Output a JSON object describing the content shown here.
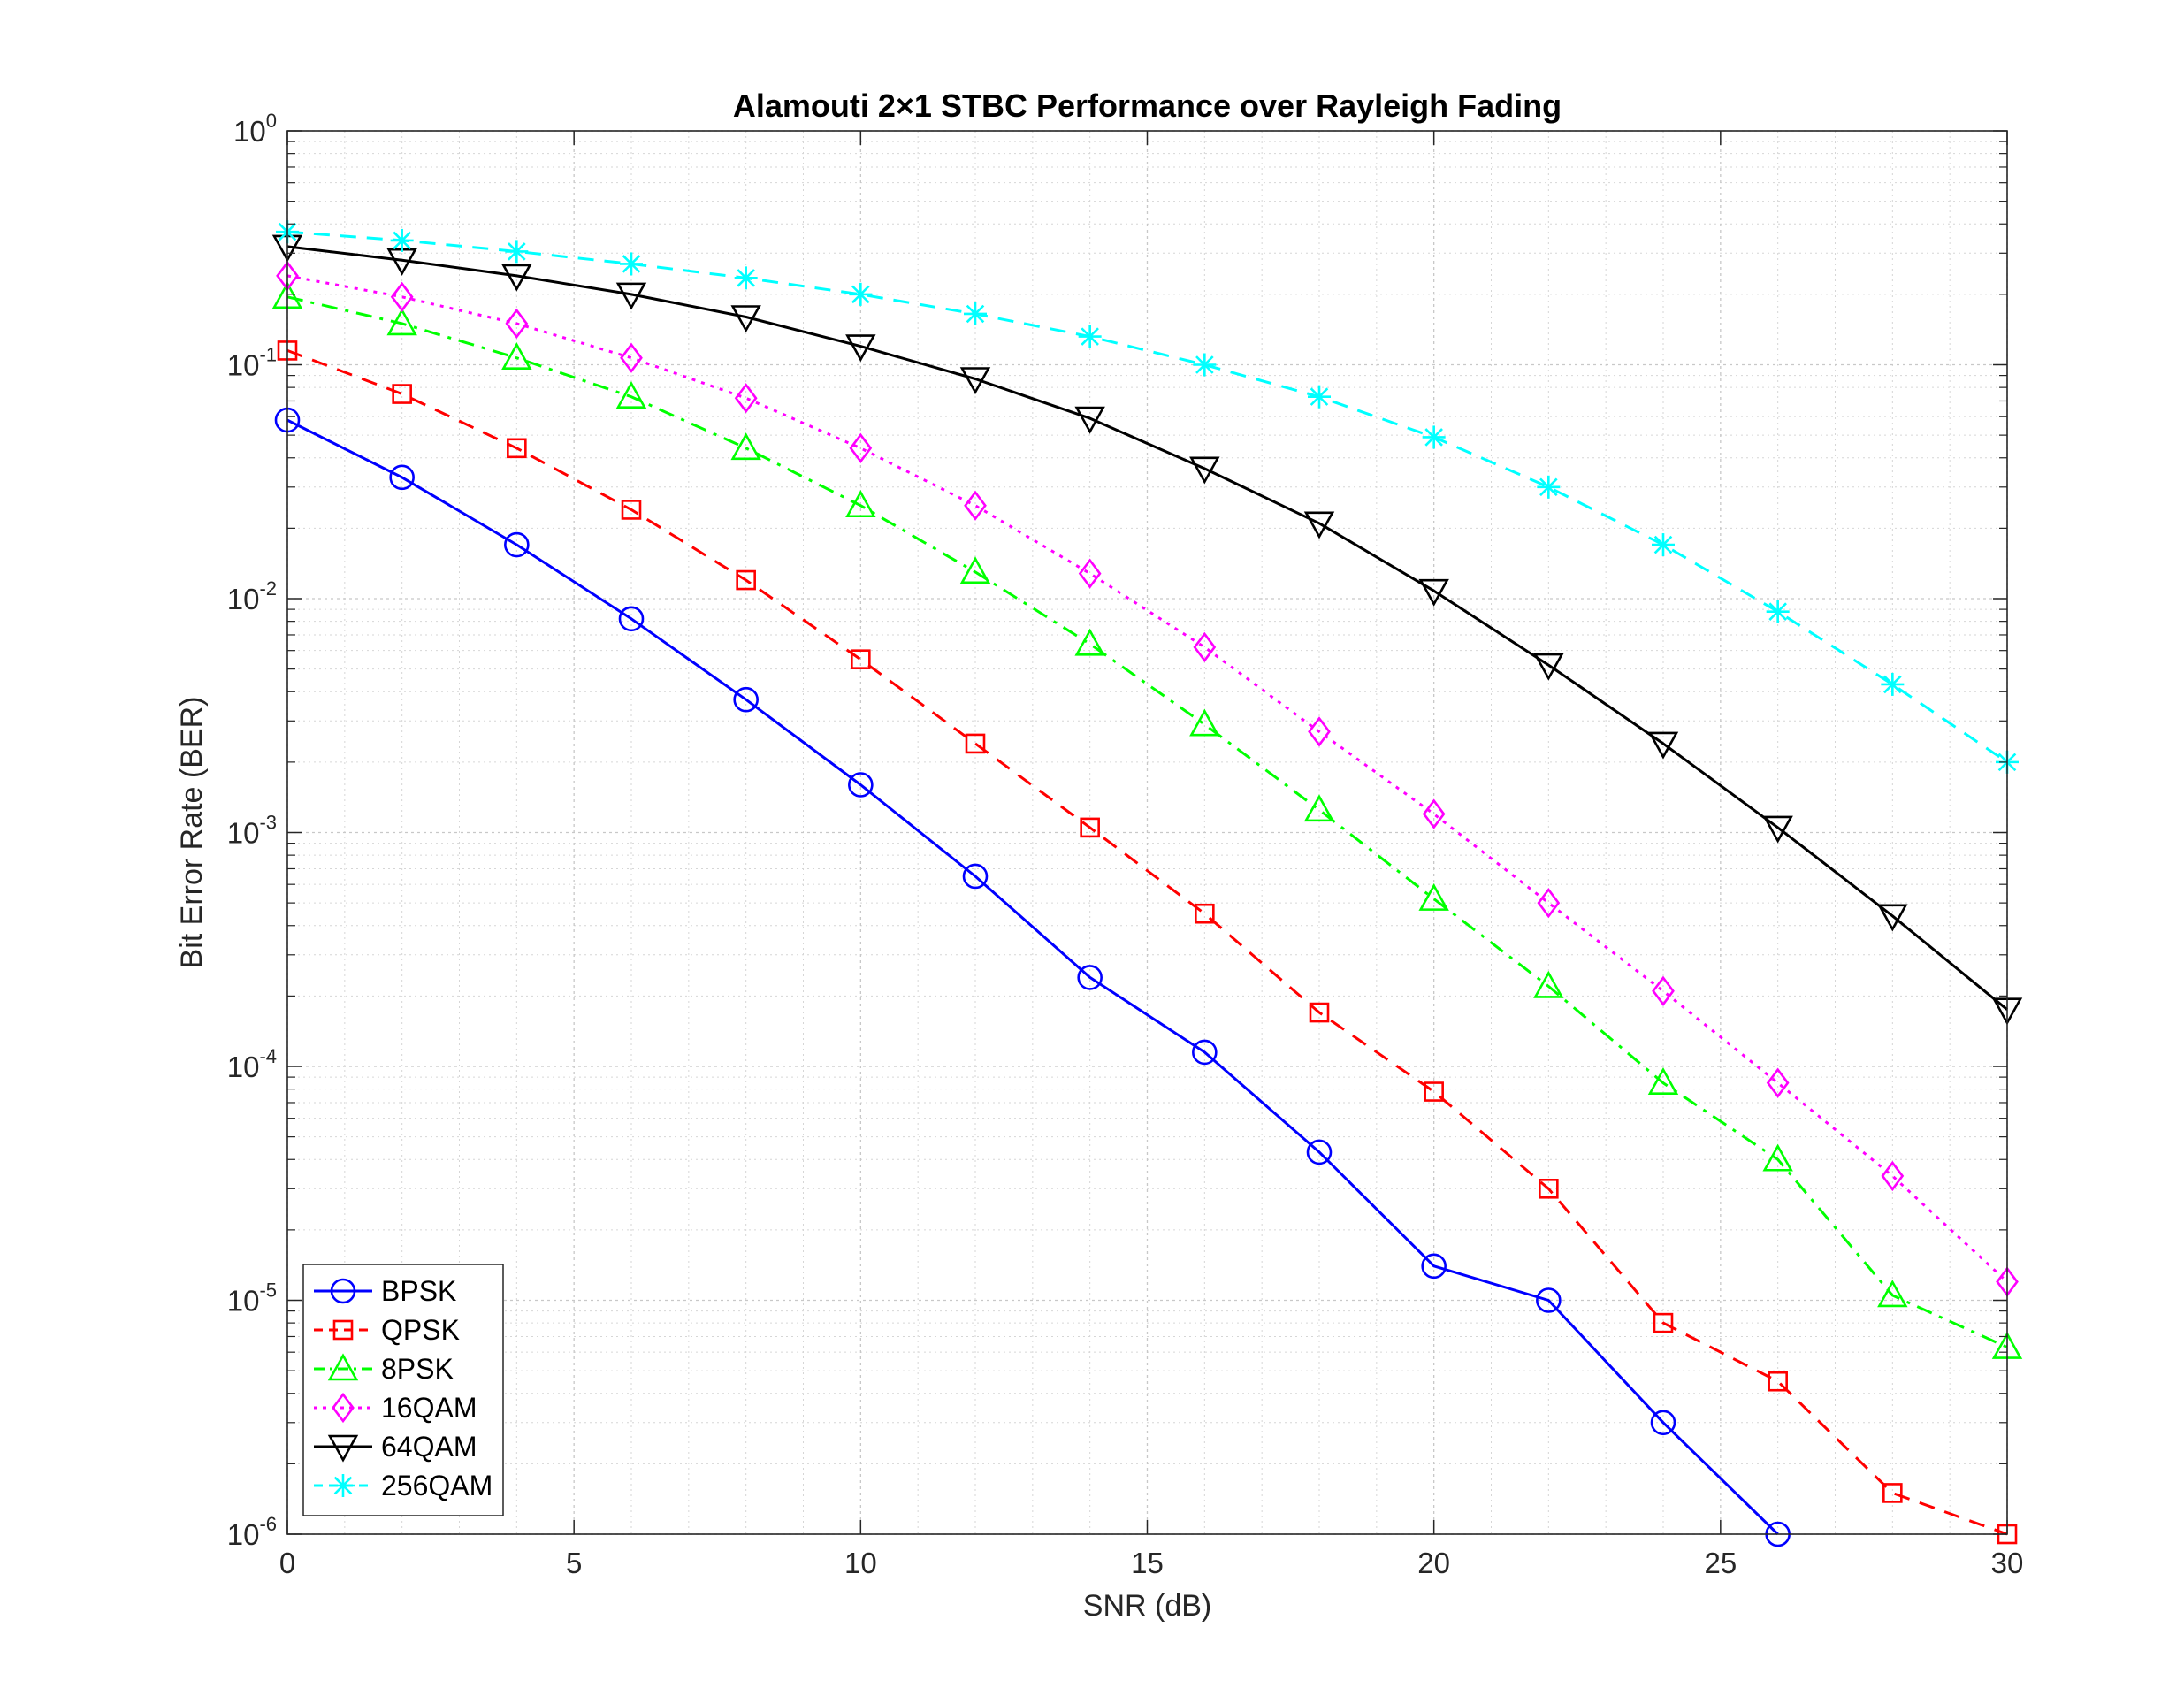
{
  "chart_data": {
    "type": "line",
    "title": "Alamouti 2×1 STBC Performance over Rayleigh Fading",
    "xlabel": "SNR (dB)",
    "ylabel": "Bit Error Rate (BER)",
    "xlim": [
      0,
      30
    ],
    "ylim": [
      1e-06,
      1
    ],
    "yscale": "log",
    "grid": true,
    "minor_grid": true,
    "legend_position": "bottom-left",
    "x_ticks": [
      0,
      5,
      10,
      15,
      20,
      25,
      30
    ],
    "x_tick_labels": [
      "0",
      "5",
      "10",
      "15",
      "20",
      "25",
      "30"
    ],
    "y_ticks": [
      {
        "value": 1,
        "base": "10",
        "exp": "0"
      },
      {
        "value": 0.1,
        "base": "10",
        "exp": "-1"
      },
      {
        "value": 0.01,
        "base": "10",
        "exp": "-2"
      },
      {
        "value": 0.001,
        "base": "10",
        "exp": "-3"
      },
      {
        "value": 0.0001,
        "base": "10",
        "exp": "-4"
      },
      {
        "value": 1e-05,
        "base": "10",
        "exp": "-5"
      },
      {
        "value": 1e-06,
        "base": "10",
        "exp": "-6"
      }
    ],
    "series": [
      {
        "name": "BPSK",
        "color": "#0000ff",
        "dash": "solid",
        "marker": "circle",
        "x": [
          0,
          2,
          4,
          6,
          8,
          10,
          12,
          14,
          16,
          18,
          20,
          22,
          24,
          26
        ],
        "y": [
          0.058,
          0.033,
          0.017,
          0.0082,
          0.0037,
          0.0016,
          0.00065,
          0.00024,
          0.000115,
          4.3e-05,
          1.4e-05,
          1e-05,
          3e-06,
          1e-06
        ]
      },
      {
        "name": "QPSK",
        "color": "#ff0000",
        "dash": "dashed",
        "marker": "square",
        "x": [
          0,
          2,
          4,
          6,
          8,
          10,
          12,
          14,
          16,
          18,
          20,
          22,
          24,
          26,
          28,
          30
        ],
        "y": [
          0.115,
          0.075,
          0.044,
          0.024,
          0.012,
          0.0055,
          0.0024,
          0.00105,
          0.00045,
          0.00017,
          7.8e-05,
          3e-05,
          8e-06,
          4.5e-06,
          1.5e-06,
          1e-06
        ]
      },
      {
        "name": "8PSK",
        "color": "#00ff00",
        "dash": "dashdot",
        "marker": "triangle-up",
        "x": [
          0,
          2,
          4,
          6,
          8,
          10,
          12,
          14,
          16,
          18,
          20,
          22,
          24,
          26,
          28,
          30
        ],
        "y": [
          0.195,
          0.15,
          0.107,
          0.073,
          0.044,
          0.025,
          0.013,
          0.0064,
          0.0029,
          0.00125,
          0.00052,
          0.00022,
          8.5e-05,
          4e-05,
          1.05e-05,
          6.3e-06
        ]
      },
      {
        "name": "16QAM",
        "color": "#ff00ff",
        "dash": "dotted",
        "marker": "diamond",
        "x": [
          0,
          2,
          4,
          6,
          8,
          10,
          12,
          14,
          16,
          18,
          20,
          22,
          24,
          26,
          28,
          30
        ],
        "y": [
          0.24,
          0.195,
          0.15,
          0.107,
          0.072,
          0.044,
          0.025,
          0.0128,
          0.0062,
          0.0027,
          0.0012,
          0.0005,
          0.00021,
          8.5e-05,
          3.4e-05,
          1.2e-05
        ]
      },
      {
        "name": "64QAM",
        "color": "#000000",
        "dash": "solid",
        "marker": "triangle-down",
        "x": [
          0,
          2,
          4,
          6,
          8,
          10,
          12,
          14,
          16,
          18,
          20,
          22,
          24,
          26,
          28,
          30
        ],
        "y": [
          0.32,
          0.28,
          0.24,
          0.2,
          0.16,
          0.12,
          0.087,
          0.059,
          0.036,
          0.021,
          0.0108,
          0.0052,
          0.0024,
          0.00105,
          0.00044,
          0.000175
        ]
      },
      {
        "name": "256QAM",
        "color": "#00ffff",
        "dash": "dashed",
        "marker": "asterisk",
        "x": [
          0,
          2,
          4,
          6,
          8,
          10,
          12,
          14,
          16,
          18,
          20,
          22,
          24,
          26,
          28,
          30
        ],
        "y": [
          0.37,
          0.34,
          0.305,
          0.27,
          0.235,
          0.2,
          0.165,
          0.132,
          0.1,
          0.073,
          0.049,
          0.03,
          0.017,
          0.0088,
          0.0043,
          0.002
        ]
      }
    ]
  }
}
